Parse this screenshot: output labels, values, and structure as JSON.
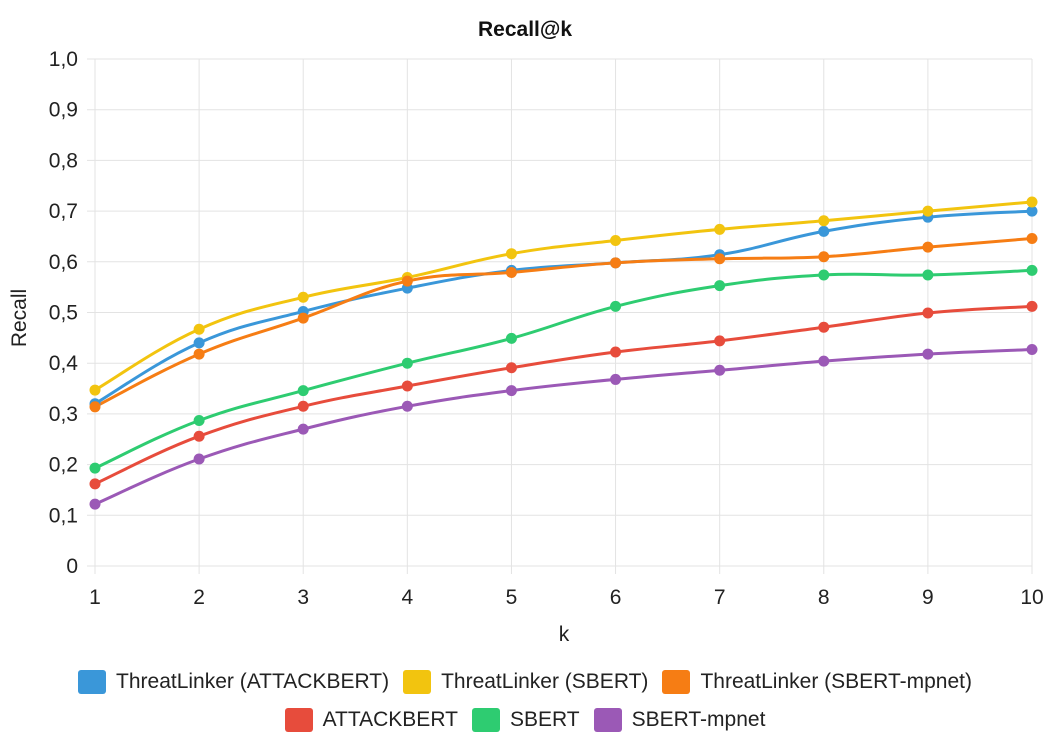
{
  "chart_data": {
    "type": "line",
    "title": "Recall@k",
    "xlabel": "k",
    "ylabel": "Recall",
    "x": [
      1,
      2,
      3,
      4,
      5,
      6,
      7,
      8,
      9,
      10
    ],
    "ylim": [
      0,
      1.0
    ],
    "yticks": [
      "0",
      "0,1",
      "0,2",
      "0,3",
      "0,4",
      "0,5",
      "0,6",
      "0,7",
      "0,8",
      "0,9",
      "1,0"
    ],
    "grid": true,
    "legend_position": "bottom",
    "series": [
      {
        "name": "ThreatLinker (ATTACKBERT)",
        "color": "#3a97d9",
        "values": [
          0.32,
          0.44,
          0.502,
          0.548,
          0.583,
          0.598,
          0.614,
          0.66,
          0.688,
          0.7
        ]
      },
      {
        "name": "ThreatLinker (SBERT)",
        "color": "#f2c40f",
        "values": [
          0.347,
          0.467,
          0.53,
          0.569,
          0.616,
          0.642,
          0.664,
          0.681,
          0.7,
          0.718
        ]
      },
      {
        "name": "ThreatLinker (SBERT-mpnet)",
        "color": "#f67d14",
        "values": [
          0.314,
          0.418,
          0.489,
          0.562,
          0.579,
          0.598,
          0.606,
          0.61,
          0.629,
          0.646
        ]
      },
      {
        "name": "ATTACKBERT",
        "color": "#e74c3c",
        "values": [
          0.162,
          0.256,
          0.315,
          0.355,
          0.391,
          0.422,
          0.444,
          0.471,
          0.499,
          0.512
        ]
      },
      {
        "name": "SBERT",
        "color": "#2ecc71",
        "values": [
          0.193,
          0.287,
          0.346,
          0.4,
          0.449,
          0.512,
          0.553,
          0.574,
          0.574,
          0.583
        ]
      },
      {
        "name": "SBERT-mpnet",
        "color": "#9b59b6",
        "values": [
          0.122,
          0.211,
          0.27,
          0.315,
          0.346,
          0.368,
          0.386,
          0.404,
          0.418,
          0.427
        ]
      }
    ]
  }
}
